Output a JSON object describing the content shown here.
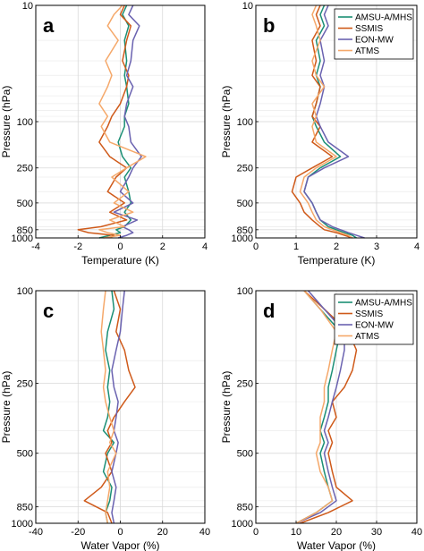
{
  "legend": {
    "AMSU-A/MHS": "#1b8f75",
    "SSMIS": "#cf5a1a",
    "EON-MW": "#6a62b0",
    "ATMS": "#f5a86a"
  },
  "chart_data": [
    {
      "type": "line",
      "panel_label": "a",
      "xlabel": "Temperature (K)",
      "ylabel": "Pressure (hPa)",
      "xlim": [
        -4,
        4
      ],
      "xticks": [
        "-4",
        "-2",
        "0",
        "2",
        "4"
      ],
      "ylim": [
        10,
        1000
      ],
      "yscale": "log",
      "yticks": [
        "10",
        "100",
        "250",
        "500",
        "850",
        "1000"
      ],
      "grid": true,
      "legend": null,
      "series": [
        {
          "name": "AMSU-A/MHS",
          "color": "#1b8f75",
          "x": [
            0.3,
            0.1,
            0.4,
            0.2,
            0.3,
            0.2,
            0.3,
            0.4,
            0.2,
            0.2,
            -0.1,
            0.1,
            0.5,
            0.2,
            0.4,
            0.5,
            0.2,
            0.5,
            0.2,
            -0.2,
            0.0,
            -0.5,
            -1.0
          ],
          "y": [
            10,
            12,
            15,
            20,
            30,
            40,
            50,
            70,
            90,
            110,
            150,
            200,
            250,
            300,
            400,
            500,
            600,
            700,
            800,
            850,
            900,
            950,
            1000
          ]
        },
        {
          "name": "SSMIS",
          "color": "#cf5a1a",
          "x": [
            0.2,
            0.0,
            0.5,
            0.3,
            0.1,
            0.4,
            0.3,
            0.0,
            -0.4,
            -0.6,
            -1.0,
            -0.5,
            0.3,
            -0.2,
            -0.6,
            0.2,
            -0.5,
            0.3,
            -0.9,
            -2.0,
            -1.5,
            -0.3,
            -0.5
          ],
          "y": [
            10,
            12,
            15,
            20,
            30,
            40,
            50,
            70,
            90,
            110,
            150,
            200,
            250,
            300,
            400,
            500,
            600,
            700,
            800,
            850,
            900,
            950,
            1000
          ]
        },
        {
          "name": "EON-MW",
          "color": "#6a62b0",
          "x": [
            0.6,
            0.4,
            0.9,
            0.6,
            0.5,
            0.3,
            0.6,
            0.3,
            0.2,
            0.4,
            0.5,
            1.0,
            0.6,
            0.4,
            0.0,
            0.6,
            -0.3,
            0.8,
            0.1,
            0.4,
            0.6,
            0.3,
            -0.1
          ],
          "y": [
            10,
            12,
            15,
            20,
            30,
            40,
            50,
            70,
            90,
            110,
            150,
            200,
            250,
            300,
            400,
            500,
            600,
            700,
            800,
            850,
            900,
            950,
            1000
          ]
        },
        {
          "name": "ATMS",
          "color": "#f5a86a",
          "x": [
            0.1,
            -0.3,
            -0.6,
            -0.1,
            -0.7,
            -0.4,
            -0.6,
            -1.0,
            -0.6,
            -0.9,
            -0.5,
            1.2,
            0.3,
            -0.4,
            0.4,
            -0.3,
            0.6,
            -0.5,
            0.2,
            -1.0,
            -0.6,
            0.0,
            -0.8
          ],
          "y": [
            10,
            12,
            15,
            20,
            30,
            40,
            50,
            70,
            90,
            110,
            150,
            200,
            250,
            300,
            400,
            500,
            600,
            700,
            800,
            850,
            900,
            950,
            1000
          ]
        }
      ]
    },
    {
      "type": "line",
      "panel_label": "b",
      "xlabel": "Temperature (K)",
      "ylabel": "Pressure (hPa)",
      "xlim": [
        0,
        4
      ],
      "xticks": [
        "0",
        "1",
        "2",
        "3",
        "4"
      ],
      "ylim": [
        10,
        1000
      ],
      "yscale": "log",
      "yticks": [
        "10",
        "100",
        "250",
        "500",
        "850",
        "1000"
      ],
      "grid": true,
      "legend": "top-right",
      "series": [
        {
          "name": "AMSU-A/MHS",
          "color": "#1b8f75",
          "x": [
            1.7,
            1.6,
            1.7,
            1.5,
            1.6,
            1.5,
            1.6,
            1.5,
            1.4,
            1.5,
            1.7,
            2.1,
            1.6,
            1.3,
            1.2,
            1.4,
            1.5,
            1.6,
            1.8,
            2.0,
            2.2,
            2.4,
            2.5
          ],
          "y": [
            10,
            12,
            15,
            20,
            30,
            40,
            50,
            70,
            90,
            110,
            150,
            200,
            250,
            300,
            400,
            500,
            600,
            700,
            800,
            850,
            900,
            950,
            1000
          ]
        },
        {
          "name": "SSMIS",
          "color": "#cf5a1a",
          "x": [
            1.6,
            1.5,
            1.6,
            1.4,
            1.5,
            1.4,
            1.6,
            1.5,
            1.4,
            1.6,
            1.4,
            1.9,
            1.4,
            1.0,
            0.9,
            1.1,
            1.2,
            1.4,
            1.6,
            1.7,
            2.0,
            2.2,
            2.4
          ],
          "y": [
            10,
            12,
            15,
            20,
            30,
            40,
            50,
            70,
            90,
            110,
            150,
            200,
            250,
            300,
            400,
            500,
            600,
            700,
            800,
            850,
            900,
            950,
            1000
          ]
        },
        {
          "name": "EON-MW",
          "color": "#6a62b0",
          "x": [
            1.8,
            1.7,
            1.8,
            1.6,
            1.7,
            1.6,
            1.7,
            1.6,
            1.5,
            1.6,
            1.8,
            2.3,
            1.7,
            1.3,
            1.2,
            1.4,
            1.5,
            1.6,
            1.9,
            2.1,
            2.3,
            2.5,
            2.7
          ],
          "y": [
            10,
            12,
            15,
            20,
            30,
            40,
            50,
            70,
            90,
            110,
            150,
            200,
            250,
            300,
            400,
            500,
            600,
            700,
            800,
            850,
            900,
            950,
            1000
          ]
        },
        {
          "name": "ATMS",
          "color": "#f5a86a",
          "x": [
            1.5,
            1.4,
            1.5,
            1.6,
            1.4,
            1.5,
            1.7,
            1.4,
            1.5,
            1.4,
            1.5,
            2.0,
            1.5,
            1.2,
            1.1,
            1.3,
            1.4,
            1.5,
            1.7,
            1.9,
            2.1,
            2.3,
            2.4
          ],
          "y": [
            10,
            12,
            15,
            20,
            30,
            40,
            50,
            70,
            90,
            110,
            150,
            200,
            250,
            300,
            400,
            500,
            600,
            700,
            800,
            850,
            900,
            950,
            1000
          ]
        }
      ]
    },
    {
      "type": "line",
      "panel_label": "c",
      "xlabel": "Water Vapor (%)",
      "ylabel": "Pressure (hPa)",
      "xlim": [
        -40,
        40
      ],
      "xticks": [
        "-40",
        "-20",
        "0",
        "20",
        "40"
      ],
      "ylim": [
        100,
        1000
      ],
      "yscale": "log",
      "yticks": [
        "100",
        "250",
        "500",
        "850",
        "1000"
      ],
      "grid": true,
      "legend": null,
      "series": [
        {
          "name": "AMSU-A/MHS",
          "color": "#1b8f75",
          "x": [
            -4,
            -3,
            -6,
            -7,
            -5,
            -6,
            -5,
            -6,
            -8,
            -3,
            -6,
            -8,
            -4,
            -5,
            -7,
            -6
          ],
          "y": [
            100,
            120,
            150,
            180,
            220,
            260,
            300,
            350,
            400,
            450,
            500,
            600,
            700,
            800,
            900,
            1000
          ]
        },
        {
          "name": "SSMIS",
          "color": "#cf5a1a",
          "x": [
            -3,
            0,
            -2,
            2,
            4,
            7,
            2,
            -3,
            -6,
            -4,
            -7,
            -4,
            -9,
            -17,
            -6,
            -4
          ],
          "y": [
            100,
            120,
            150,
            180,
            220,
            260,
            300,
            350,
            400,
            450,
            500,
            600,
            700,
            800,
            900,
            1000
          ]
        },
        {
          "name": "EON-MW",
          "color": "#6a62b0",
          "x": [
            2,
            1,
            0,
            -2,
            -4,
            -3,
            -1,
            -2,
            -3,
            -1,
            -2,
            -4,
            -2,
            -3,
            -4,
            -3
          ],
          "y": [
            100,
            120,
            150,
            180,
            220,
            260,
            300,
            350,
            400,
            450,
            500,
            600,
            700,
            800,
            900,
            1000
          ]
        },
        {
          "name": "ATMS",
          "color": "#f5a86a",
          "x": [
            -7,
            -8,
            -9,
            -8,
            -7,
            -8,
            -7,
            -5,
            -3,
            -5,
            -2,
            -6,
            -5,
            -6,
            -7,
            -6
          ],
          "y": [
            100,
            120,
            150,
            180,
            220,
            260,
            300,
            350,
            400,
            450,
            500,
            600,
            700,
            800,
            900,
            1000
          ]
        }
      ]
    },
    {
      "type": "line",
      "panel_label": "d",
      "xlabel": "Water Vapor (%)",
      "ylabel": "Pressure (hPa)",
      "xlim": [
        0,
        40
      ],
      "xticks": [
        "0",
        "10",
        "20",
        "30",
        "40"
      ],
      "ylim": [
        100,
        1000
      ],
      "yscale": "log",
      "yticks": [
        "100",
        "250",
        "500",
        "850",
        "1000"
      ],
      "grid": true,
      "legend": "top-right",
      "series": [
        {
          "name": "AMSU-A/MHS",
          "color": "#1b8f75",
          "x": [
            12,
            16,
            21,
            20,
            19,
            18,
            18,
            17,
            16,
            17,
            16,
            17,
            18,
            19,
            15,
            10
          ],
          "y": [
            100,
            120,
            150,
            180,
            220,
            260,
            300,
            350,
            400,
            450,
            500,
            600,
            700,
            800,
            900,
            1000
          ]
        },
        {
          "name": "SSMIS",
          "color": "#cf5a1a",
          "x": [
            12,
            17,
            23,
            25,
            24,
            22,
            19,
            20,
            18,
            19,
            18,
            19,
            20,
            24,
            18,
            11
          ],
          "y": [
            100,
            120,
            150,
            180,
            220,
            260,
            300,
            350,
            400,
            450,
            500,
            600,
            700,
            800,
            900,
            1000
          ]
        },
        {
          "name": "EON-MW",
          "color": "#6a62b0",
          "x": [
            13,
            17,
            22,
            22,
            21,
            20,
            19,
            18,
            17,
            18,
            17,
            18,
            19,
            20,
            16,
            10
          ],
          "y": [
            100,
            120,
            150,
            180,
            220,
            260,
            300,
            350,
            400,
            450,
            500,
            600,
            700,
            800,
            900,
            1000
          ]
        },
        {
          "name": "ATMS",
          "color": "#f5a86a",
          "x": [
            12,
            16,
            20,
            19,
            18,
            17,
            17,
            16,
            16,
            16,
            15,
            16,
            18,
            19,
            15,
            10
          ],
          "y": [
            100,
            120,
            150,
            180,
            220,
            260,
            300,
            350,
            400,
            450,
            500,
            600,
            700,
            800,
            900,
            1000
          ]
        }
      ]
    }
  ]
}
